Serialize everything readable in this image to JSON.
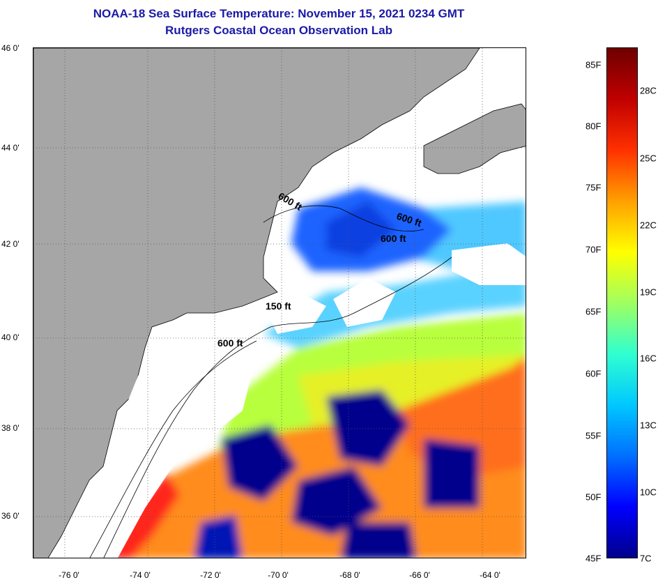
{
  "title": {
    "line1": "NOAA-18 Sea Surface Temperature:  November 15, 2021 0234 GMT",
    "line2": "Rutgers Coastal Ocean Observation Lab"
  },
  "map": {
    "latitude_labels": [
      "46 0'",
      "44 0'",
      "42 0'",
      "40 0'",
      "38 0'",
      "36 0'"
    ],
    "longitude_labels": [
      "-76 0'",
      "-74 0'",
      "-72 0'",
      "-70 0'",
      "-68 0'",
      "-66 0'",
      "-64 0'"
    ],
    "contour_labels": [
      "600 ft",
      "600 ft",
      "600 ft",
      "150 ft",
      "600 ft"
    ],
    "colors": {
      "land": "#a6a6a6",
      "cloud": "#ffffff",
      "cold": "#00008c",
      "cool": "#1e64ff",
      "mild": "#00c8e6",
      "warm": "#e6e628",
      "hot": "#ff8c1e",
      "hottest": "#ff281e"
    }
  },
  "colorbar": {
    "fahrenheit_labels": [
      "85F",
      "80F",
      "75F",
      "70F",
      "65F",
      "60F",
      "55F",
      "50F",
      "45F"
    ],
    "celsius_labels": [
      "28C",
      "25C",
      "22C",
      "19C",
      "16C",
      "13C",
      "10C",
      "7C"
    ],
    "range_f": [
      45,
      87
    ],
    "gradient": [
      "#00008c",
      "#0000ff",
      "#0070ff",
      "#00c8ff",
      "#30ffd0",
      "#a0ff60",
      "#ffff00",
      "#ffa000",
      "#ff3000",
      "#c00000",
      "#6e0000"
    ]
  }
}
